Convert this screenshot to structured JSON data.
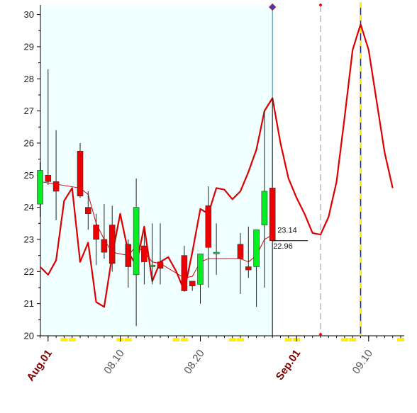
{
  "chart_data": {
    "type": "candlestick",
    "ylim": [
      20,
      30.3
    ],
    "y_ticks": [
      "20",
      "21",
      "22",
      "23",
      "24",
      "25",
      "26",
      "27",
      "28",
      "29",
      "30"
    ],
    "x_tick_labels": [
      {
        "label": "Aug.01",
        "kind": "month",
        "day": 1
      },
      {
        "label": "08.10",
        "kind": "day",
        "day": 10
      },
      {
        "label": "08.20",
        "kind": "day",
        "day": 20
      },
      {
        "label": "Sep.01",
        "kind": "month",
        "day": 32
      },
      {
        "label": "09.10",
        "kind": "day",
        "day": 41
      }
    ],
    "candles": [
      {
        "day": 0,
        "open": 24.1,
        "high": 25.4,
        "low": 23.7,
        "close": 25.15
      },
      {
        "day": 1,
        "open": 25.0,
        "high": 28.3,
        "low": 24.7,
        "close": 24.8
      },
      {
        "day": 2,
        "open": 24.8,
        "high": 26.4,
        "low": 23.6,
        "close": 24.5
      },
      {
        "day": 5,
        "open": 25.75,
        "high": 26.0,
        "low": 24.3,
        "close": 24.35
      },
      {
        "day": 6,
        "open": 24.0,
        "high": 24.5,
        "low": 23.3,
        "close": 23.8
      },
      {
        "day": 7,
        "open": 23.45,
        "high": 23.8,
        "low": 22.2,
        "close": 23.0
      },
      {
        "day": 8,
        "open": 23.0,
        "high": 24.1,
        "low": 22.4,
        "close": 22.6
      },
      {
        "day": 9,
        "open": 23.45,
        "high": 24.05,
        "low": 22.0,
        "close": 22.25
      },
      {
        "day": 11,
        "open": 22.85,
        "high": 23.0,
        "low": 21.5,
        "close": 22.15
      },
      {
        "day": 12,
        "open": 21.9,
        "high": 24.9,
        "low": 20.3,
        "close": 24.0
      },
      {
        "day": 13,
        "open": 22.8,
        "high": 23.3,
        "low": 21.6,
        "close": 22.3
      },
      {
        "day": 14,
        "open": 22.15,
        "high": 23.5,
        "low": 21.6,
        "close": 22.2
      },
      {
        "day": 15,
        "open": 22.3,
        "high": 23.5,
        "low": 21.6,
        "close": 22.1
      },
      {
        "day": 18,
        "open": 22.5,
        "high": 22.8,
        "low": 21.4,
        "close": 21.4
      },
      {
        "day": 19,
        "open": 21.7,
        "high": 21.7,
        "low": 21.4,
        "close": 21.55
      },
      {
        "day": 20,
        "open": 21.6,
        "high": 22.5,
        "low": 21.0,
        "close": 22.55
      },
      {
        "day": 21,
        "open": 24.05,
        "high": 24.65,
        "low": 21.5,
        "close": 22.75
      },
      {
        "day": 22,
        "open": 22.55,
        "high": 23.5,
        "low": 21.9,
        "close": 22.6
      },
      {
        "day": 25,
        "open": 22.85,
        "high": 23.2,
        "low": 21.3,
        "close": 22.4
      },
      {
        "day": 26,
        "open": 22.15,
        "high": 23.4,
        "low": 21.8,
        "close": 22.05
      },
      {
        "day": 27,
        "open": 22.15,
        "high": 23.3,
        "low": 20.9,
        "close": 23.3
      },
      {
        "day": 28,
        "open": 23.45,
        "high": 27.0,
        "low": 21.5,
        "close": 24.5
      },
      {
        "day": 29,
        "open": 24.6,
        "high": 27.4,
        "low": 20.0,
        "close": 22.96
      }
    ],
    "moving_average": [
      [
        0,
        24.8
      ],
      [
        5,
        24.6
      ],
      [
        6,
        24.4
      ],
      [
        7,
        23.5
      ],
      [
        8,
        23.0
      ],
      [
        9,
        22.6
      ],
      [
        11,
        22.5
      ],
      [
        12,
        22.8
      ],
      [
        13,
        22.6
      ],
      [
        14,
        22.3
      ],
      [
        15,
        22.25
      ],
      [
        18,
        21.8
      ],
      [
        19,
        21.85
      ],
      [
        20,
        22.3
      ],
      [
        21,
        22.4
      ],
      [
        22,
        22.4
      ],
      [
        25,
        22.4
      ],
      [
        26,
        22.3
      ],
      [
        27,
        22.5
      ],
      [
        28,
        23.0
      ],
      [
        29,
        23.14
      ]
    ],
    "overlay_curve": [
      [
        0,
        22.15
      ],
      [
        1,
        21.9
      ],
      [
        2,
        22.35
      ],
      [
        3,
        24.2
      ],
      [
        4,
        24.6
      ],
      [
        5,
        22.3
      ],
      [
        6,
        22.9
      ],
      [
        7,
        21.05
      ],
      [
        8,
        20.9
      ],
      [
        9,
        22.5
      ],
      [
        10,
        23.8
      ],
      [
        11,
        22.6
      ],
      [
        12,
        22.2
      ],
      [
        13,
        23.4
      ],
      [
        14,
        21.7
      ],
      [
        15,
        22.3
      ],
      [
        16,
        22.45
      ],
      [
        17,
        22.0
      ],
      [
        18,
        21.4
      ],
      [
        19,
        22.6
      ],
      [
        20,
        23.95
      ],
      [
        21,
        23.8
      ],
      [
        22,
        24.6
      ],
      [
        23,
        24.55
      ],
      [
        24,
        24.25
      ],
      [
        25,
        24.5
      ],
      [
        26,
        25.1
      ],
      [
        27,
        25.8
      ],
      [
        28,
        27.0
      ],
      [
        29,
        27.4
      ],
      [
        30,
        26.0
      ],
      [
        31,
        24.9
      ],
      [
        32,
        24.3
      ],
      [
        33,
        23.8
      ],
      [
        34,
        23.2
      ],
      [
        35,
        23.15
      ],
      [
        36,
        23.7
      ],
      [
        37,
        24.8
      ],
      [
        38,
        26.8
      ],
      [
        39,
        28.9
      ],
      [
        40,
        29.7
      ],
      [
        41,
        28.9
      ],
      [
        42,
        27.3
      ],
      [
        43,
        25.7
      ],
      [
        44,
        24.6
      ]
    ],
    "price_labels": [
      "23.14",
      "22.96"
    ],
    "current_day": 29,
    "marker_days": [
      35,
      40
    ],
    "highlight_range": [
      0,
      29
    ],
    "colors": {
      "up": "#00ee22",
      "down": "#ee0000",
      "line": "#dd0000",
      "highlight": "#f0ffff",
      "marker_yellow": "#ffee00"
    }
  }
}
